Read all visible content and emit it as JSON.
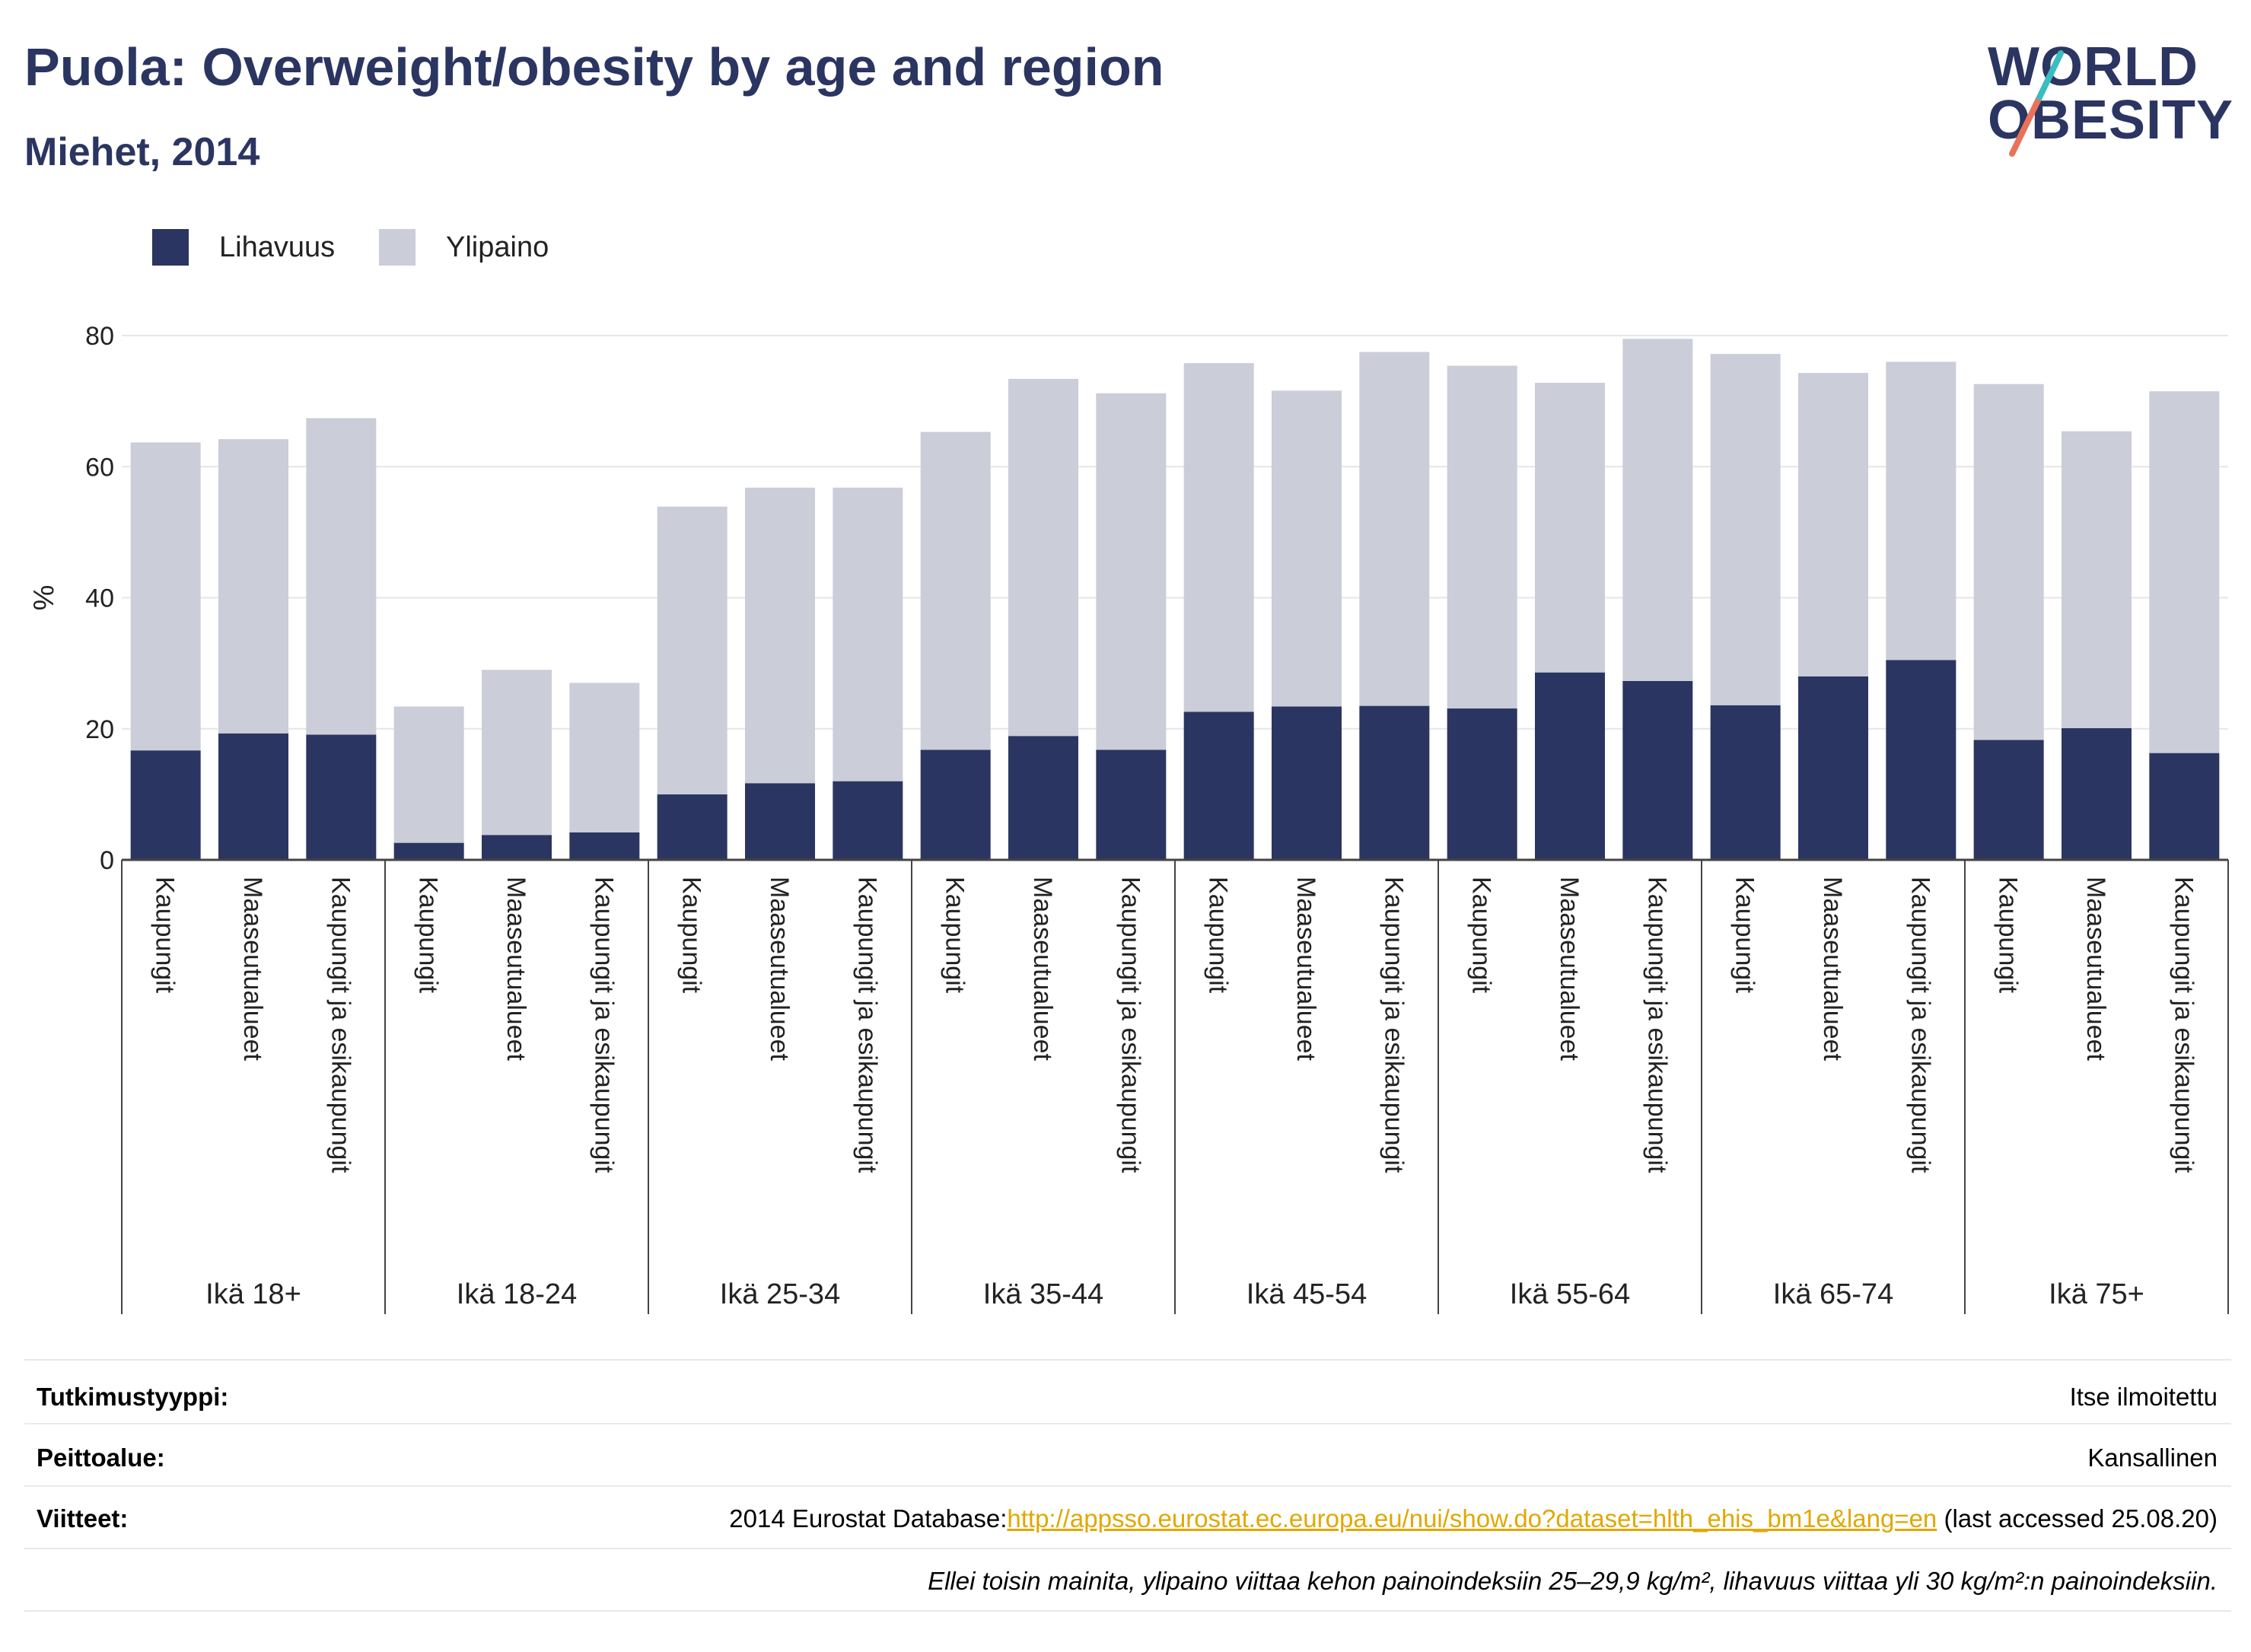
{
  "header": {
    "title": "Puola: Overweight/obesity by age and region",
    "subtitle": "Miehet, 2014",
    "logo_line1": "WORLD",
    "logo_line2": "OBESITY"
  },
  "colors": {
    "title": "#2b3561",
    "lihavuus": "#2b3561",
    "ylipaino": "#cbcdd9",
    "link": "#e0a800",
    "logo_slash_red": "#e8735a",
    "logo_slash_teal": "#3bbdc0"
  },
  "legend": [
    {
      "label": "Lihavuus",
      "color": "#2b3561"
    },
    {
      "label": "Ylipaino",
      "color": "#cbcdd9"
    }
  ],
  "chart_data": {
    "type": "bar",
    "stacked": true,
    "ylabel": "%",
    "ylim": [
      0,
      80
    ],
    "yticks": [
      0,
      20,
      40,
      60,
      80
    ],
    "grid": true,
    "legend_position": "top-left",
    "groups": [
      "Ikä 18+",
      "Ikä 18-24",
      "Ikä 25-34",
      "Ikä 35-44",
      "Ikä 45-54",
      "Ikä 55-64",
      "Ikä 65-74",
      "Ikä 75+"
    ],
    "categories": [
      "Kaupungit",
      "Maaseutualueet",
      "Kaupungit ja esikaupungit"
    ],
    "series": [
      {
        "name": "Lihavuus",
        "values": [
          [
            16.7,
            19.3,
            19.1
          ],
          [
            2.6,
            3.8,
            4.2
          ],
          [
            10.0,
            11.7,
            12.0
          ],
          [
            16.8,
            18.9,
            16.8
          ],
          [
            22.6,
            23.4,
            23.5
          ],
          [
            23.1,
            28.6,
            27.3
          ],
          [
            23.6,
            28.0,
            30.5
          ],
          [
            18.3,
            20.1,
            16.3
          ]
        ]
      },
      {
        "name": "Ylipaino",
        "values": [
          [
            47.0,
            44.9,
            48.3
          ],
          [
            20.8,
            25.2,
            22.8
          ],
          [
            43.9,
            45.1,
            44.8
          ],
          [
            48.5,
            54.5,
            54.4
          ],
          [
            53.2,
            48.2,
            54.0
          ],
          [
            52.3,
            44.2,
            52.2
          ],
          [
            53.6,
            46.3,
            45.5
          ],
          [
            54.3,
            45.3,
            55.2
          ]
        ]
      }
    ]
  },
  "meta": {
    "study_type_label": "Tutkimustyyppi:",
    "study_type_value": "Itse ilmoitettu",
    "coverage_label": "Peittoalue:",
    "coverage_value": "Kansallinen",
    "refs_label": "Viitteet:",
    "refs_prefix": "2014 Eurostat Database:",
    "refs_link": "http://appsso.eurostat.ec.europa.eu/nui/show.do?dataset=hlth_ehis_bm1e&lang=en",
    "refs_suffix": " (last accessed 25.08.20)",
    "note": "Ellei toisin mainita, ylipaino viittaa kehon painoindeksiin 25–29,9 kg/m², lihavuus viittaa yli 30 kg/m²:n painoindeksiin."
  }
}
